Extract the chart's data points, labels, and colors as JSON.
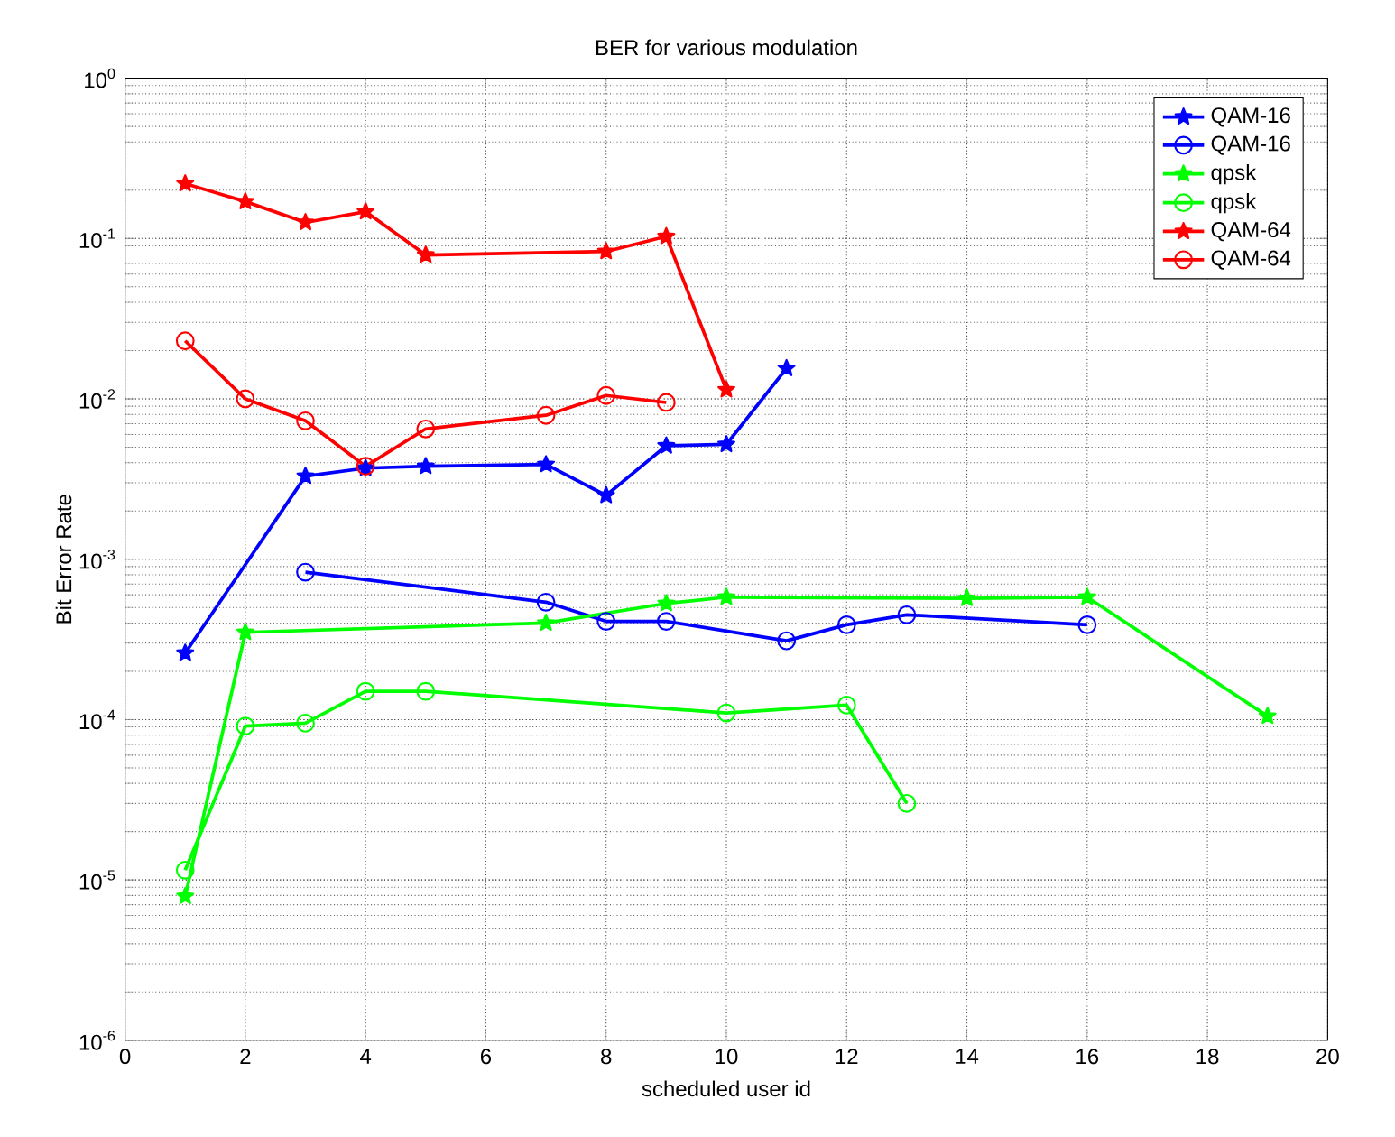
{
  "chart_data": {
    "type": "line",
    "title": "BER for various modulation",
    "xlabel": "scheduled user id",
    "ylabel": "Bit Error Rate",
    "log": "y",
    "grid": true,
    "legend": "top right",
    "xlim": [
      0,
      20
    ],
    "xticks": [
      0,
      2,
      4,
      6,
      8,
      10,
      12,
      14,
      16,
      18,
      20
    ],
    "ylim": [
      1e-06,
      1
    ],
    "yticks": [
      {
        "value": 1e-06,
        "label": "10$^{-6}$"
      },
      {
        "value": 1e-05,
        "label": "10$^{-5}$"
      },
      {
        "value": 0.0001,
        "label": "10$^{-4}$"
      },
      {
        "value": 0.001,
        "label": "10$^{-3}$"
      },
      {
        "value": 0.01,
        "label": "10$^{-2}$"
      },
      {
        "value": 0.1,
        "label": "10$^{-1}$"
      },
      {
        "value": 1,
        "label": "10$^{0}$"
      }
    ],
    "series": [
      {
        "name": "QAM-16",
        "color": "#0000ff",
        "marker": "star",
        "x": [
          1,
          3,
          4,
          5,
          7,
          8,
          9,
          10,
          11
        ],
        "values": [
          0.00026,
          0.0033,
          0.0037,
          0.0038,
          0.0039,
          0.0025,
          0.0051,
          0.0052,
          0.0155
        ]
      },
      {
        "name": "QAM-16",
        "color": "#0000ff",
        "marker": "circle",
        "x": [
          3,
          7,
          8,
          9,
          11,
          12,
          13,
          16
        ],
        "values": [
          0.00083,
          0.00054,
          0.00041,
          0.00041,
          0.00031,
          0.00039,
          0.00045,
          0.00039
        ]
      },
      {
        "name": "qpsk",
        "color": "#00ff00",
        "marker": "star",
        "x": [
          1,
          2,
          7,
          9,
          10,
          14,
          16,
          19
        ],
        "values": [
          7.9e-06,
          0.00035,
          0.0004,
          0.00053,
          0.00058,
          0.00057,
          0.00058,
          0.000105
        ]
      },
      {
        "name": "qpsk",
        "color": "#00ff00",
        "marker": "circle",
        "x": [
          1,
          2,
          3,
          4,
          5,
          10,
          12,
          13
        ],
        "values": [
          1.15e-05,
          9.1e-05,
          9.5e-05,
          0.00015,
          0.00015,
          0.00011,
          0.000123,
          3e-05
        ]
      },
      {
        "name": "QAM-64",
        "color": "#ff0000",
        "marker": "star",
        "x": [
          1,
          2,
          3,
          4,
          5,
          8,
          9,
          10
        ],
        "values": [
          0.22,
          0.17,
          0.126,
          0.147,
          0.079,
          0.083,
          0.103,
          0.0114
        ]
      },
      {
        "name": "QAM-64",
        "color": "#ff0000",
        "marker": "circle",
        "x": [
          1,
          2,
          3,
          4,
          5,
          7,
          8,
          9
        ],
        "values": [
          0.023,
          0.01,
          0.0073,
          0.0038,
          0.0065,
          0.0079,
          0.0105,
          0.0095
        ]
      }
    ]
  }
}
